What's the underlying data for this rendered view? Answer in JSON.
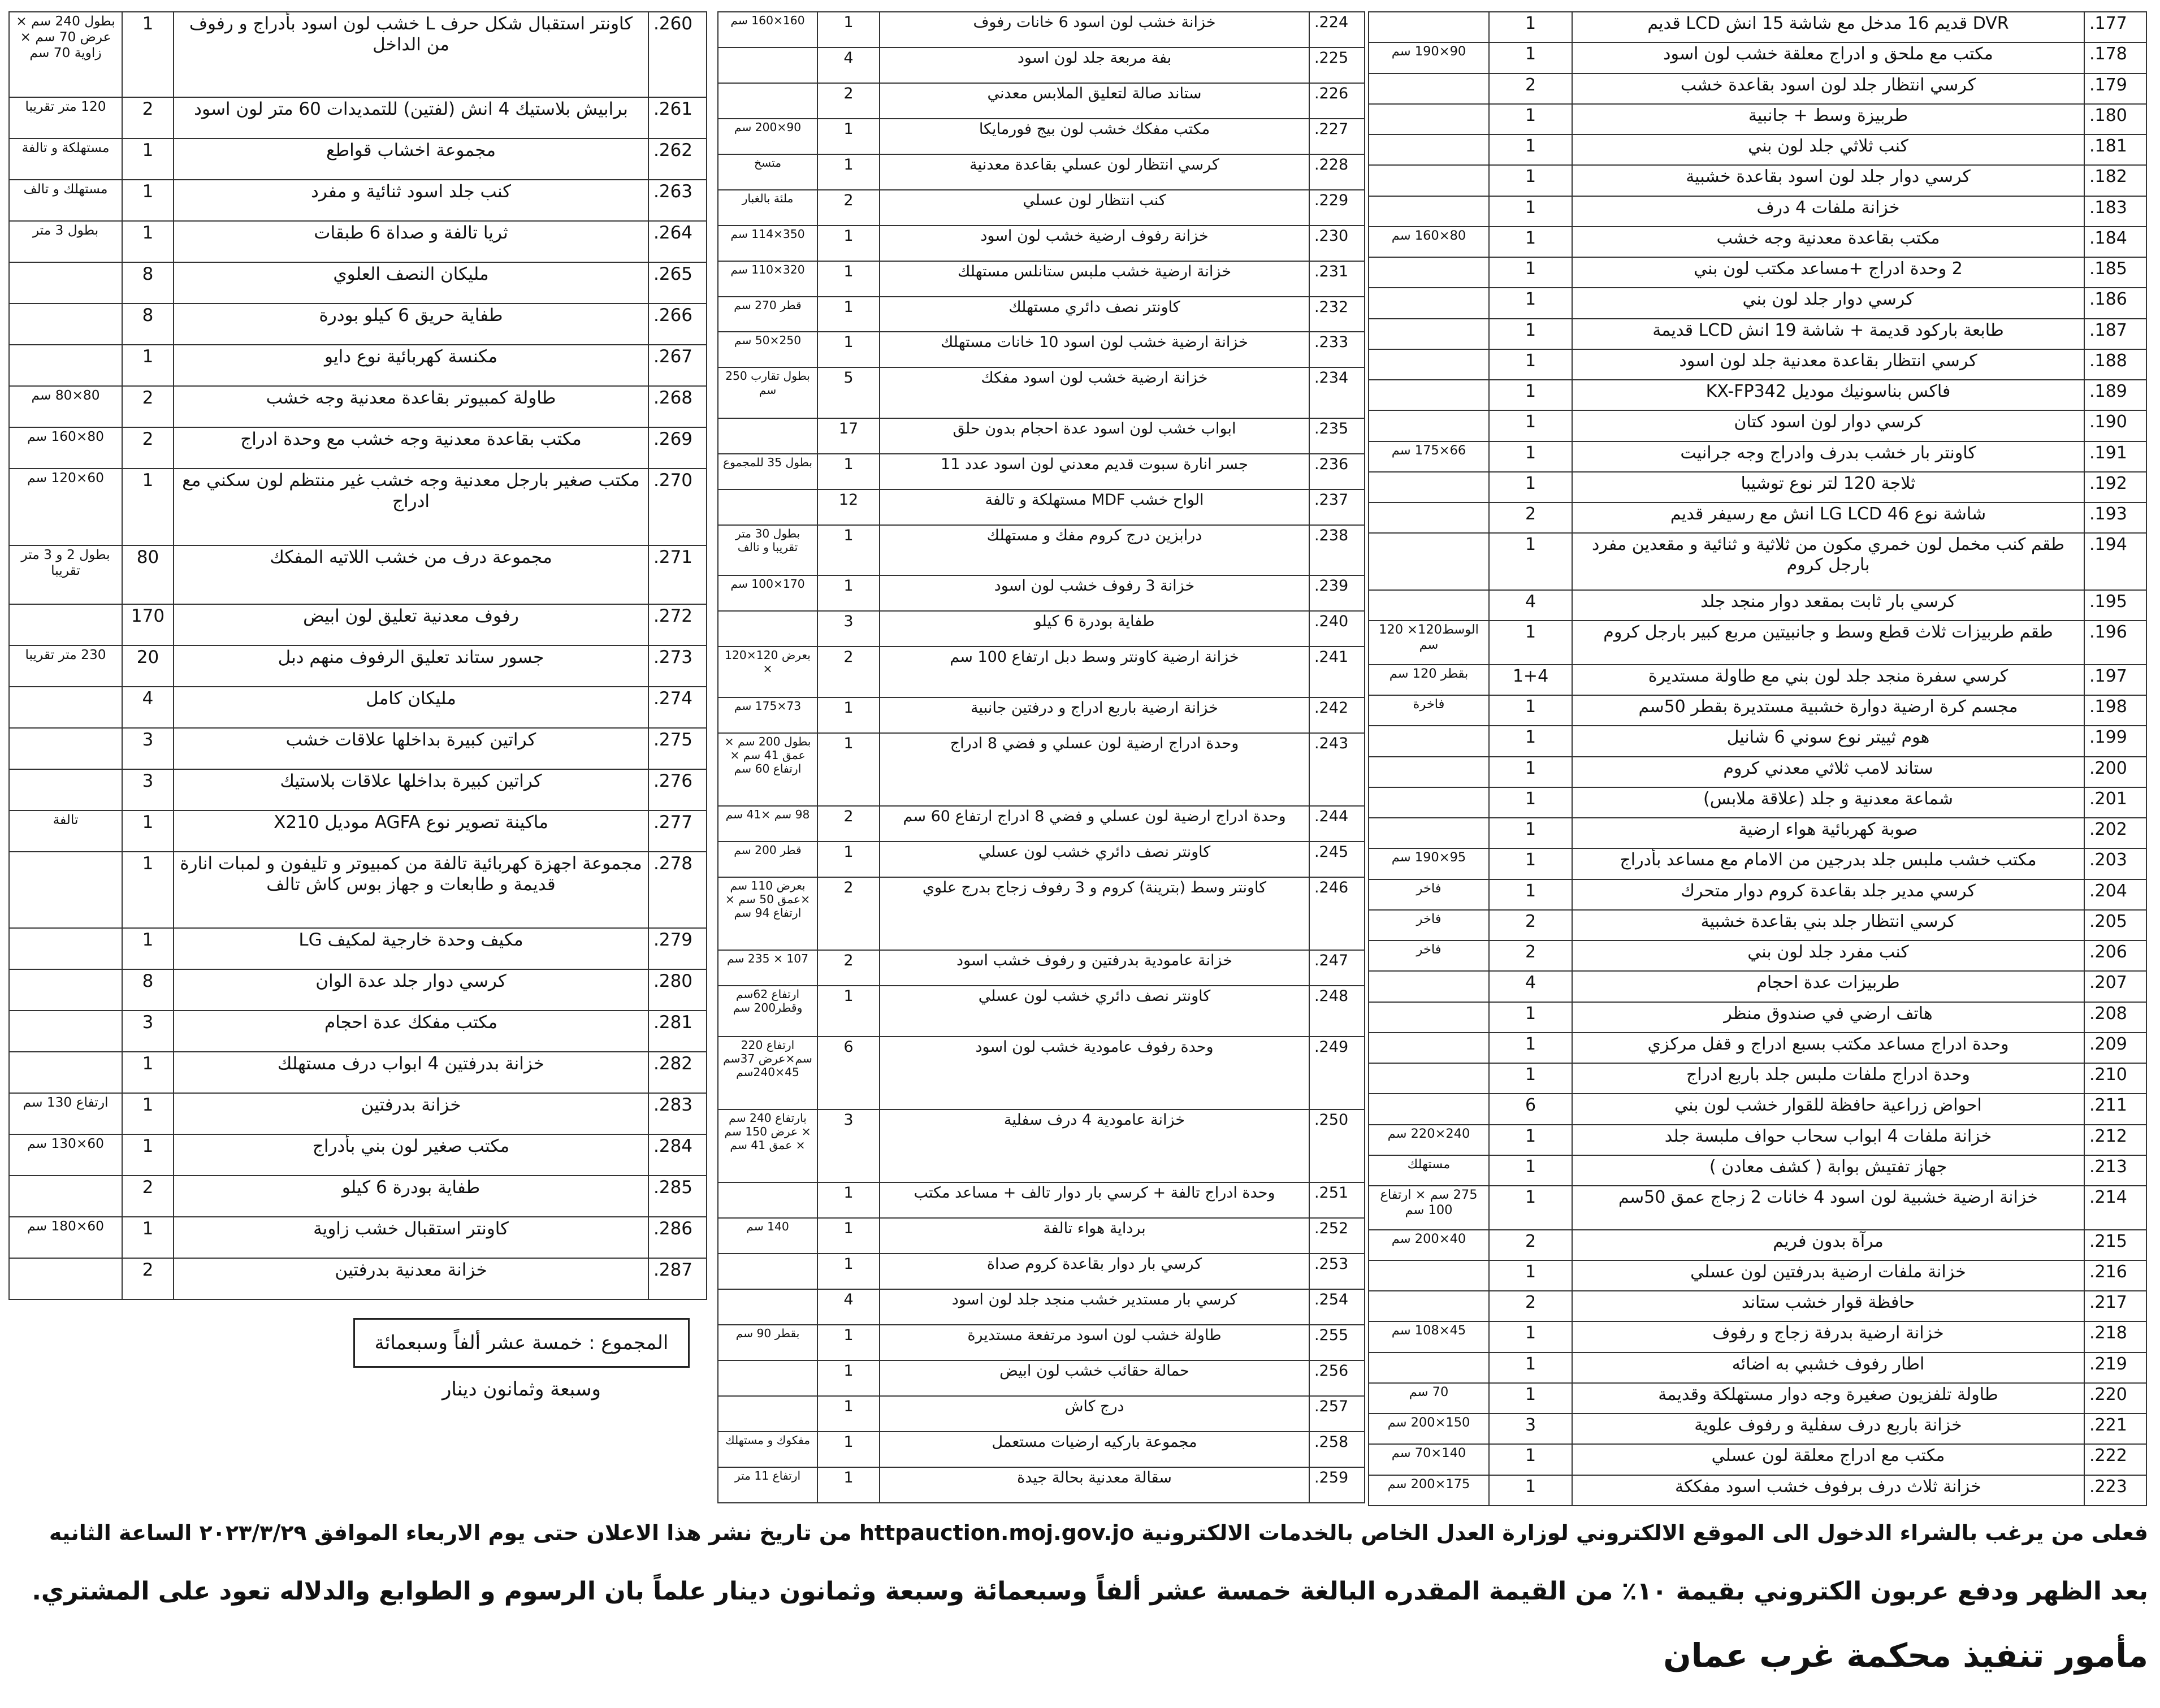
{
  "tables": [
    {
      "rows": [
        [
          "177.",
          "DVR قديم 16 مدخل مع شاشة 15 انش LCD قديم",
          "1",
          null
        ],
        [
          "178.",
          "مكتب مع ملحق و ادراج معلقة خشب لون اسود",
          "1",
          "90×190 سم"
        ],
        [
          "179.",
          "كرسي انتظار جلد لون اسود بقاعدة خشب",
          "2",
          null
        ],
        [
          "180.",
          "طربيزة وسط + جانبية",
          "1",
          null
        ],
        [
          "181.",
          "كنب ثلاثي جلد لون بني",
          "1",
          null
        ],
        [
          "182.",
          "كرسي دوار جلد لون اسود بقاعدة خشبية",
          "1",
          null
        ],
        [
          "183.",
          "خزانة ملفات 4 درف",
          "1",
          null
        ],
        [
          "184.",
          "مكتب بقاعدة معدنية وجه خشب",
          "1",
          "80×160 سم"
        ],
        [
          "185.",
          "2 وحدة ادراج +مساعد مكتب لون بني",
          "1",
          null
        ],
        [
          "186.",
          "كرسي دوار جلد لون بني",
          "1",
          null
        ],
        [
          "187.",
          "طابعة باركود قديمة + شاشة 19 انش LCD قديمة",
          "1",
          null
        ],
        [
          "188.",
          "كرسي انتظار بقاعدة معدنية جلد لون اسود",
          "1",
          null
        ],
        [
          "189.",
          "فاكس بناسونيك موديل KX-FP342",
          "1",
          null
        ],
        [
          "190.",
          "كرسي دوار لون اسود كتان",
          "1",
          null
        ],
        [
          "191.",
          "كاونتر بار خشب بدرف وادراج وجه جرانيت",
          "1",
          "66×175 سم"
        ],
        [
          "192.",
          "ثلاجة 120 لتر نوع توشيبا",
          "1",
          null
        ],
        [
          "193.",
          "شاشة نوع LG LCD 46 انش مع رسيفر قديم",
          "2",
          null
        ],
        [
          "194.",
          "طقم كنب مخمل لون خمري مكون من ثلاثية و ثنائية و مقعدين مفرد بارجل كروم",
          "1",
          null
        ],
        [
          "195.",
          "كرسي بار ثابت بمقعد دوار منجد جلد",
          "4",
          null
        ],
        [
          "196.",
          "طقم طربيزات ثلاث قطع وسط و جانبيتين مربع كبير بارجل كروم",
          "1",
          "الوسط120× 120 سم"
        ],
        [
          "197.",
          "كرسي سفرة منجد جلد لون بني مع طاولة مستديرة",
          "1+4",
          "بقطر 120 سم"
        ],
        [
          "198.",
          "مجسم كرة ارضية دوارة خشبية مستديرة بقطر 50سم",
          "1",
          "فاخرة"
        ],
        [
          "199.",
          "هوم ثييتر نوع سوني 6 شانيل",
          "1",
          null
        ],
        [
          "200.",
          "ستاند لامب ثلاثي معدني كروم",
          "1",
          null
        ],
        [
          "201.",
          "شماعة معدنية و جلد (علاقة ملابس)",
          "1",
          null
        ],
        [
          "202.",
          "صوبة كهربائية هواء ارضية",
          "1",
          null
        ],
        [
          "203.",
          "مكتب خشب ملبس جلد بدرجين من الامام مع مساعد بأدراج",
          "1",
          "95×190 سم"
        ],
        [
          "204.",
          "كرسي مدير جلد بقاعدة كروم دوار متحرك",
          "1",
          "فاخر"
        ],
        [
          "205.",
          "كرسي انتظار جلد بني بقاعدة خشبية",
          "2",
          "فاخر"
        ],
        [
          "206.",
          "كنب مفرد جلد لون بني",
          "2",
          "فاخر"
        ],
        [
          "207.",
          "طربيزات عدة احجام",
          "4",
          null
        ],
        [
          "208.",
          "هاتف ارضي في صندوق منظر",
          "1",
          null
        ],
        [
          "209.",
          "وحدة ادراج مساعد مكتب بسبع ادراج و قفل مركزي",
          "1",
          null
        ],
        [
          "210.",
          "وحدة ادراج ملفات ملبس جلد باربع ادراج",
          "1",
          null
        ],
        [
          "211.",
          "احواض زراعية حافظة للقوار خشب لون بني",
          "6",
          null
        ],
        [
          "212.",
          "خزانة ملفات 4 ابواب سحاب حواف ملبسة جلد",
          "1",
          "240×220 سم"
        ],
        [
          "213.",
          "جهاز تفتيش بوابة ( كشف معادن )",
          "1",
          "مستهلك"
        ],
        [
          "214.",
          "خزانة ارضية خشبية لون اسود 4 خانات 2 زجاج عمق 50سم",
          "1",
          "275 سم × ارتفاع 100 سم"
        ],
        [
          "215.",
          "مرآة بدون فريم",
          "2",
          "40×200 سم"
        ],
        [
          "216.",
          "خزانة ملفات ارضية بدرفتين لون عسلي",
          "1",
          null
        ],
        [
          "217.",
          "حافظة قوار خشب ستاند",
          "2",
          null
        ],
        [
          "218.",
          "خزانة ارضية بدرفة زجاج و رفوف",
          "1",
          "45×108 سم"
        ],
        [
          "219.",
          "اطار رفوف خشبي به اضائه",
          "1",
          null
        ],
        [
          "220.",
          "طاولة تلفزيون صغيرة وجه دوار مستهلكة وقديمة",
          "1",
          "70 سم"
        ],
        [
          "221.",
          "خزانة باربع درف سفلية و رفوف علوية",
          "3",
          "150×200 سم"
        ],
        [
          "222.",
          "مكتب مع ادراج معلقة لون عسلي",
          "1",
          "140×70 سم"
        ],
        [
          "223.",
          "خزانة ثلاث درف برفوف خشب اسود مفككة",
          "1",
          "175×200 سم"
        ]
      ]
    },
    {
      "rows": [
        [
          "224.",
          "خزانة خشب لون اسود 6 خانات رفوف",
          "1",
          "160×160 سم"
        ],
        [
          "225.",
          "بفة مربعة جلد لون اسود",
          "4",
          null
        ],
        [
          "226.",
          "ستاند صالة لتعليق الملابس معدني",
          "2",
          null
        ],
        [
          "227.",
          "مكتب مفكك خشب لون بيج فورمايكا",
          "1",
          "90×200 سم"
        ],
        [
          "228.",
          "كرسي انتظار لون عسلي بقاعدة معدنية",
          "1",
          "متسخ"
        ],
        [
          "229.",
          "كنب انتظار لون عسلي",
          "2",
          "ملئة بالغبار"
        ],
        [
          "230.",
          "خزانة رفوف ارضية خشب لون اسود",
          "1",
          "350×114 سم"
        ],
        [
          "231.",
          "خزانة ارضية خشب ملبس ستانلس مستهلك",
          "1",
          "320×110 سم"
        ],
        [
          "232.",
          "كاونتر نصف دائري مستهلك",
          "1",
          "قطر 270 سم"
        ],
        [
          "233.",
          "خزانة ارضية خشب لون اسود 10 خانات مستهلك",
          "1",
          "250×50 سم"
        ],
        [
          "234.",
          "خزانة ارضية خشب لون اسود مفكك",
          "5",
          "بطول تقارب 250 سم"
        ],
        [
          "235.",
          "ابواب خشب لون اسود عدة احجام بدون حلق",
          "17",
          null
        ],
        [
          "236.",
          "جسر انارة سبوت قديم معدني لون اسود عدد 11",
          "1",
          "بطول 35 للمجموع"
        ],
        [
          "237.",
          "الواح خشب MDF مستهلكة و تالفة",
          "12",
          null
        ],
        [
          "238.",
          "درابزين درج كروم مفك و مستهلك",
          "1",
          "بطول 30 متر تقريبا و تالف"
        ],
        [
          "239.",
          "خزانة 3 رفوف خشب لون اسود",
          "1",
          "170×100 سم"
        ],
        [
          "240.",
          "طفاية بودرة 6 كيلو",
          "3",
          null
        ],
        [
          "241.",
          "خزانة ارضية كاونتر وسط دبل ارتفاع 100 سم",
          "2",
          "بعرض 120×120 ×"
        ],
        [
          "242.",
          "خزانة ارضية باربع ادراج و درفتين جانبية",
          "1",
          "73×175 سم"
        ],
        [
          "243.",
          "وحدة ادراج ارضية لون عسلي و فضي 8 ادراج",
          "1",
          "بطول 200 سم × عمق 41 سم × ارتفاع 60 سم"
        ],
        [
          "244.",
          "وحدة ادراج ارضية لون عسلي و فضي 8 ادراج ارتفاع 60 سم",
          "2",
          "98 سم ×41 سم"
        ],
        [
          "245.",
          "كاونتر نصف دائري خشب لون عسلي",
          "1",
          "قطر 200 سم"
        ],
        [
          "246.",
          "كاونتر وسط (بترينة) كروم و 3 رفوف زجاج بدرج علوي",
          "2",
          "بعرض 110 سم ×عمق 50 سم × ارتفاع 94 سم"
        ],
        [
          "247.",
          "خزانة عامودية بدرفتين و رفوف خشب اسود",
          "2",
          "107 × 235 سم"
        ],
        [
          "248.",
          "كاونتر نصف دائري خشب لون عسلي",
          "1",
          "ارتفاع 62سم وقطر200 سم"
        ],
        [
          "249.",
          "وحدة رفوف عامودية خشب لون اسود",
          "6",
          "ارتفاع 220 سم×عرض 37سم 45×240سم"
        ],
        [
          "250.",
          "خزانة عامودية 4 درف سفلية",
          "3",
          "بارتفاع 240 سم × عرض 150 سم × عمق 41 سم"
        ],
        [
          "251.",
          "وحدة ادراج تالفة + كرسي بار دوار تالف + مساعد مكتب",
          "1",
          null
        ],
        [
          "252.",
          "برداية هواء تالفة",
          "1",
          "140 سم"
        ],
        [
          "253.",
          "كرسي بار دوار بقاعدة كروم صداة",
          "1",
          null
        ],
        [
          "254.",
          "كرسي بار مستدير خشب منجد جلد لون اسود",
          "4",
          null
        ],
        [
          "255.",
          "طاولة خشب لون اسود مرتفعة مستديرة",
          "1",
          "بقطر 90 سم"
        ],
        [
          "256.",
          "حمالة حقائب خشب لون ابيض",
          "1",
          null
        ],
        [
          "257.",
          "درج كاش",
          "1",
          null
        ],
        [
          "258.",
          "مجموعة باركيه ارضيات مستعمل",
          "1",
          "مفكوك و مستهلك"
        ],
        [
          "259.",
          "سقالة معدنية بحالة جيدة",
          "1",
          "ارتفاع 11 متر"
        ]
      ]
    },
    {
      "rows": [
        [
          "260.",
          "كاونتر استقبال شكل حرف L خشب لون اسود بأدراج و رفوف من الداخل",
          "1",
          "بطول 240 سم × عرض 70 سم × زاوية 70 سم"
        ],
        [
          "261.",
          "برابيش بلاستيك 4 انش (لفتين) للتمديدات 60 متر لون اسود",
          "2",
          "120 متر تقريبا"
        ],
        [
          "262.",
          "مجموعة اخشاب قواطع",
          "1",
          "مستهلكة و تالفة"
        ],
        [
          "263.",
          "كنب جلد اسود ثنائية و مفرد",
          "1",
          "مستهلك و تالف"
        ],
        [
          "264.",
          "ثريا تالفة و صداة 6 طبقات",
          "1",
          "بطول 3 متر"
        ],
        [
          "265.",
          "مليكان النصف العلوي",
          "8",
          null
        ],
        [
          "266.",
          "طفاية حريق 6 كيلو بودرة",
          "8",
          null
        ],
        [
          "267.",
          "مكنسة كهربائية نوع دايو",
          "1",
          null
        ],
        [
          "268.",
          "طاولة كمبيوتر بقاعدة معدنية وجه خشب",
          "2",
          "80×80 سم"
        ],
        [
          "269.",
          "مكتب بقاعدة معدنية وجه خشب مع وحدة ادراج",
          "2",
          "80×160 سم"
        ],
        [
          "270.",
          "مكتب صغير بارجل معدنية وجه خشب غير منتظم لون سكني مع ادراج",
          "1",
          "60×120 سم"
        ],
        [
          "271.",
          "مجموعة درف من خشب اللاتيه المفكك",
          "80",
          "بطول 2 و 3 متر تقريبا"
        ],
        [
          "272.",
          "رفوف معدنية تعليق لون ابيض",
          "170",
          null
        ],
        [
          "273.",
          "جسور ستاند تعليق الرفوف منهم دبل",
          "20",
          "230 متر تقريبا"
        ],
        [
          "274.",
          "مليكان كامل",
          "4",
          null
        ],
        [
          "275.",
          "كراتين كبيرة بداخلها علاقات خشب",
          "3",
          null
        ],
        [
          "276.",
          "كراتين كبيرة بداخلها علاقات بلاستيك",
          "3",
          null
        ],
        [
          "277.",
          "ماكينة تصوير نوع AGFA موديل X210",
          "1",
          "تالفة"
        ],
        [
          "278.",
          "مجموعة اجهزة كهربائية تالفة من كمبيوتر و تليفون و لمبات انارة قديمة و طابعات و جهاز بوس كاش تالف",
          "1",
          null
        ],
        [
          "279.",
          "مكيف وحدة خارجية لمكيف LG",
          "1",
          null
        ],
        [
          "280.",
          "كرسي دوار جلد عدة الوان",
          "8",
          null
        ],
        [
          "281.",
          "مكتب مفكك عدة احجام",
          "3",
          null
        ],
        [
          "282.",
          "خزانة بدرفتين 4 ابواب درف مستهلك",
          "1",
          null
        ],
        [
          "283.",
          "خزانة بدرفتين",
          "1",
          "ارتفاع 130 سم"
        ],
        [
          "284.",
          "مكتب صغير لون بني بأدراج",
          "1",
          "60×130 سم"
        ],
        [
          "285.",
          "طفاية بودرة 6 كيلو",
          "2",
          null
        ],
        [
          "286.",
          "كاونتر استقبال خشب زاوية",
          "1",
          "60×180 سم"
        ],
        [
          "287.",
          "خزانة معدنية بدرفتين",
          "2",
          null
        ]
      ]
    }
  ],
  "total": "المجموع : خمسة عشر ألفاً وسبعمائة وسبعة وثمانون دينار",
  "footer": [
    "فعلى من يرغب بالشراء الدخول الى الموقع الالكتروني لوزارة العدل الخاص بالخدمات الالكترونية httpauction.moj.gov.jo من تاريخ نشر هذا الاعلان حتى يوم الاربعاء الموافق ٢٠٢٣/٣/٢٩ الساعة الثانيه",
    "بعد الظهر ودفع عربون الكتروني بقيمة ١٠٪ من القيمة المقدره البالغة خمسة عشر ألفاً وسبعمائة وسبعة وثمانون دينار علماً بان الرسوم و الطوابع والدلاله تعود على المشتري.",
    "مأمور تنفيذ محكمة غرب عمان"
  ]
}
